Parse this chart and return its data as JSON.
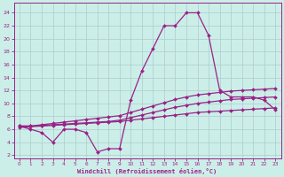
{
  "x": [
    0,
    1,
    2,
    3,
    4,
    5,
    6,
    7,
    8,
    9,
    10,
    11,
    12,
    13,
    14,
    15,
    16,
    17,
    18,
    19,
    20,
    21,
    22,
    23
  ],
  "main_y": [
    6.5,
    6.0,
    5.5,
    4.0,
    6.0,
    6.0,
    5.5,
    2.5,
    3.0,
    3.0,
    10.5,
    15.0,
    18.5,
    22.0,
    22.0,
    24.0,
    24.0,
    20.5,
    12.0,
    11.0,
    11.0,
    11.0,
    10.5,
    9.0
  ],
  "line2_y": [
    6.5,
    6.5,
    6.7,
    6.9,
    7.1,
    7.3,
    7.5,
    7.7,
    7.9,
    8.1,
    8.6,
    9.1,
    9.6,
    10.1,
    10.6,
    11.0,
    11.3,
    11.5,
    11.7,
    11.9,
    12.0,
    12.1,
    12.2,
    12.3
  ],
  "line3_y": [
    6.5,
    6.5,
    6.6,
    6.7,
    6.8,
    6.9,
    7.0,
    7.1,
    7.2,
    7.4,
    7.8,
    8.2,
    8.6,
    9.0,
    9.4,
    9.7,
    10.0,
    10.2,
    10.4,
    10.6,
    10.7,
    10.8,
    10.9,
    11.0
  ],
  "line4_y": [
    6.3,
    6.4,
    6.5,
    6.6,
    6.7,
    6.8,
    6.9,
    7.0,
    7.1,
    7.2,
    7.4,
    7.6,
    7.8,
    8.0,
    8.2,
    8.4,
    8.6,
    8.7,
    8.8,
    8.9,
    9.0,
    9.1,
    9.2,
    9.3
  ],
  "color": "#992288",
  "bg_color": "#cceee8",
  "xlabel": "Windchill (Refroidissement éolien,°C)",
  "xlim": [
    -0.5,
    23.5
  ],
  "ylim": [
    1.5,
    25.5
  ],
  "xticks": [
    0,
    1,
    2,
    3,
    4,
    5,
    6,
    7,
    8,
    9,
    10,
    11,
    12,
    13,
    14,
    15,
    16,
    17,
    18,
    19,
    20,
    21,
    22,
    23
  ],
  "yticks": [
    2,
    4,
    6,
    8,
    10,
    12,
    14,
    16,
    18,
    20,
    22,
    24
  ],
  "grid_color": "#aacece",
  "marker_size": 2.0,
  "lw": 0.9
}
